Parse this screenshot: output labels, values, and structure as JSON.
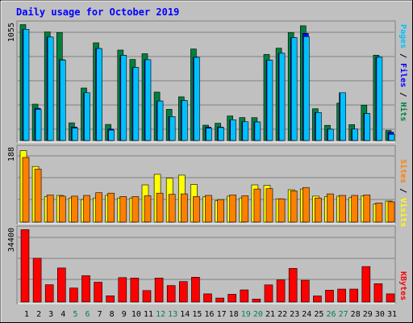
{
  "chart_data": [
    {
      "type": "bar",
      "title": "Daily usage for October 2019",
      "panel": "Hits / Files / Pages",
      "y_tick_label": "1055",
      "ylim": [
        0,
        1150
      ],
      "categories": [
        "1",
        "2",
        "3",
        "4",
        "5",
        "6",
        "7",
        "8",
        "9",
        "10",
        "11",
        "12",
        "13",
        "14",
        "15",
        "16",
        "17",
        "18",
        "19",
        "20",
        "21",
        "22",
        "23",
        "24",
        "25",
        "26",
        "27",
        "28",
        "29",
        "30",
        "31"
      ],
      "series": [
        {
          "name": "Hits",
          "color": "#008040",
          "values": [
            1115,
            350,
            1045,
            1040,
            170,
            505,
            940,
            155,
            870,
            780,
            835,
            466,
            300,
            420,
            880,
            148,
            166,
            236,
            221,
            220,
            828,
            888,
            1040,
            1104,
            305,
            146,
            360,
            153,
            340,
            821,
            96
          ]
        },
        {
          "name": "Files",
          "color": "#0000ff",
          "values": [
            1070,
            310,
            995,
            778,
            130,
            460,
            885,
            110,
            820,
            703,
            778,
            380,
            230,
            385,
            800,
            128,
            129,
            200,
            180,
            179,
            773,
            840,
            990,
            1031,
            270,
            109,
            460,
            110,
            260,
            801,
            80
          ]
        },
        {
          "name": "Pages",
          "color": "#00c0ff",
          "values": [
            1070,
            300,
            995,
            774,
            120,
            460,
            885,
            100,
            820,
            703,
            778,
            380,
            230,
            385,
            800,
            118,
            124,
            200,
            180,
            179,
            773,
            840,
            990,
            1000,
            270,
            109,
            460,
            110,
            260,
            801,
            60
          ]
        }
      ]
    },
    {
      "type": "bar",
      "panel": "Sites / Visits",
      "y_tick_label": "188",
      "ylim": [
        0,
        200
      ],
      "categories": [
        "1",
        "2",
        "3",
        "4",
        "5",
        "6",
        "7",
        "8",
        "9",
        "10",
        "11",
        "12",
        "13",
        "14",
        "15",
        "16",
        "17",
        "18",
        "19",
        "20",
        "21",
        "22",
        "23",
        "24",
        "25",
        "26",
        "27",
        "28",
        "29",
        "30",
        "31"
      ],
      "series": [
        {
          "name": "Visits",
          "color": "#ffff00",
          "values": [
            190,
            148,
            68,
            71,
            64,
            60,
            64,
            71,
            64,
            64,
            99,
            127,
            117,
            125,
            100,
            67,
            57,
            69,
            64,
            99,
            98,
            62,
            86,
            88,
            69,
            68,
            69,
            65,
            70,
            48,
            56
          ]
        },
        {
          "name": "Sites",
          "color": "#ff8000",
          "values": [
            172,
            141,
            72,
            69,
            69,
            71,
            78,
            77,
            68,
            68,
            70,
            77,
            74,
            75,
            68,
            71,
            60,
            72,
            70,
            88,
            89,
            62,
            83,
            92,
            64,
            75,
            71,
            71,
            72,
            51,
            54
          ]
        }
      ]
    },
    {
      "type": "bar",
      "panel": "KBytes",
      "y_tick_label": "34400",
      "ylim": [
        0,
        36000
      ],
      "categories": [
        "1",
        "2",
        "3",
        "4",
        "5",
        "6",
        "7",
        "8",
        "9",
        "10",
        "11",
        "12",
        "13",
        "14",
        "15",
        "16",
        "17",
        "18",
        "19",
        "20",
        "21",
        "22",
        "23",
        "24",
        "25",
        "26",
        "27",
        "28",
        "29",
        "30",
        "31"
      ],
      "series": [
        {
          "name": "KBytes",
          "color": "#ff0000",
          "values": [
            34700,
            21000,
            8300,
            16300,
            6700,
            12600,
            9500,
            3000,
            11700,
            11500,
            5500,
            11500,
            7900,
            9800,
            11900,
            3900,
            1900,
            3700,
            5800,
            1400,
            8200,
            10600,
            16100,
            10400,
            2900,
            5700,
            6200,
            6200,
            17000,
            8800,
            3900
          ]
        }
      ]
    }
  ],
  "x_highlight_color": "#00805c",
  "x_highlight_days": [
    "5",
    "6",
    "12",
    "13",
    "19",
    "20",
    "26",
    "27"
  ]
}
